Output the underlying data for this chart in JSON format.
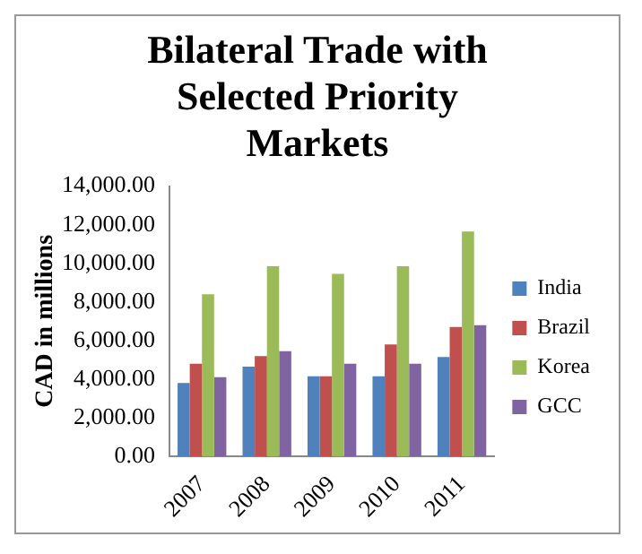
{
  "chart_data": {
    "type": "bar",
    "title": "Bilateral Trade with Selected Priority Markets",
    "ylabel": "CAD in millions",
    "categories": [
      "2007",
      "2008",
      "2009",
      "2010",
      "2011"
    ],
    "series": [
      {
        "name": "India",
        "color": "#4f81bd",
        "values": [
          3800,
          4650,
          4150,
          4150,
          5150
        ]
      },
      {
        "name": "Brazil",
        "color": "#c0504d",
        "values": [
          4800,
          5200,
          4150,
          5800,
          6700
        ]
      },
      {
        "name": "Korea",
        "color": "#9bbb59",
        "values": [
          8400,
          9850,
          9450,
          9850,
          11650
        ]
      },
      {
        "name": "GCC",
        "color": "#8064a2",
        "values": [
          4100,
          5450,
          4800,
          4800,
          6800
        ]
      }
    ],
    "ylim": [
      0,
      14000
    ],
    "yticks": [
      {
        "value": 0,
        "label": "0.00"
      },
      {
        "value": 2000,
        "label": "2,000.00"
      },
      {
        "value": 4000,
        "label": "4,000.00"
      },
      {
        "value": 6000,
        "label": "6,000.00"
      },
      {
        "value": 8000,
        "label": "8,000.00"
      },
      {
        "value": 10000,
        "label": "10,000.00"
      },
      {
        "value": 12000,
        "label": "12,000.00"
      },
      {
        "value": 14000,
        "label": "14,000.00"
      }
    ],
    "grid": false,
    "legend": "right"
  }
}
